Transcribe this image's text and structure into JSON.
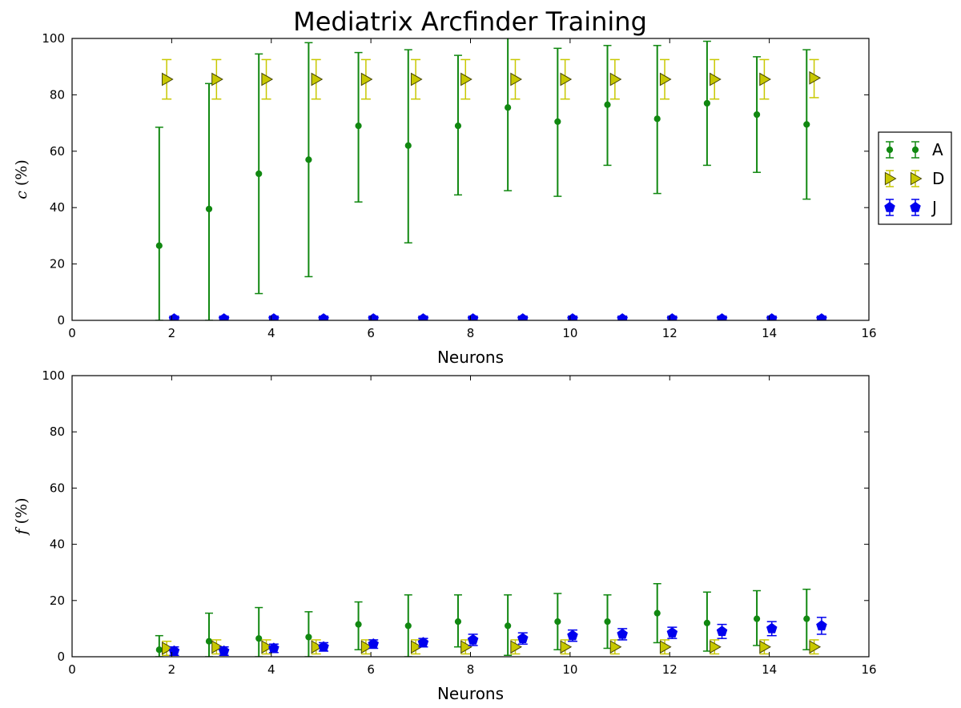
{
  "figure": {
    "title": "Mediatrix Arcfinder Training"
  },
  "colors": {
    "A": "#118811",
    "D": "#c8c800",
    "J": "#0000ee",
    "D_edge": "#444400"
  },
  "legend": {
    "placement": "outside-right-of-top-panel",
    "entries": [
      "A",
      "D",
      "J"
    ]
  },
  "chart_data": [
    {
      "type": "scatter",
      "panel": "top",
      "title": "Mediatrix Arcfinder Training",
      "xlabel": "Neurons",
      "ylabel_symbol": "c",
      "ylabel_unit": " (%)",
      "xlim": [
        0,
        16
      ],
      "ylim": [
        0,
        100
      ],
      "xticks": [
        0,
        2,
        4,
        6,
        8,
        10,
        12,
        14,
        16
      ],
      "yticks": [
        0,
        20,
        40,
        60,
        80,
        100
      ],
      "grid": false,
      "series": [
        {
          "name": "A",
          "marker": "dot",
          "x": [
            1.75,
            2.75,
            3.75,
            4.75,
            5.75,
            6.75,
            7.75,
            8.75,
            9.75,
            10.75,
            11.75,
            12.75,
            13.75,
            14.75
          ],
          "y": [
            26.5,
            39.5,
            52,
            57,
            69,
            62,
            69,
            75.5,
            70.5,
            76.5,
            71.5,
            77,
            73,
            69.5
          ],
          "err_low": [
            26.5,
            39.5,
            42.5,
            41.5,
            27,
            34.5,
            24.5,
            29.5,
            26.5,
            21.5,
            26.5,
            22,
            20.5,
            26.5
          ],
          "err_high": [
            42,
            44.5,
            42.5,
            41.5,
            26,
            34,
            25,
            26,
            26,
            21,
            26,
            22,
            20.5,
            26.5
          ]
        },
        {
          "name": "D",
          "marker": "triangle-right",
          "x": [
            1.9,
            2.9,
            3.9,
            4.9,
            5.9,
            6.9,
            7.9,
            8.9,
            9.9,
            10.9,
            11.9,
            12.9,
            13.9,
            14.9
          ],
          "y": [
            85.5,
            85.5,
            85.5,
            85.5,
            85.5,
            85.5,
            85.5,
            85.5,
            85.5,
            85.5,
            85.5,
            85.5,
            85.5,
            86
          ],
          "err_low": [
            7,
            7,
            7,
            7,
            7,
            7,
            7,
            7,
            7,
            7,
            7,
            7,
            7,
            7
          ],
          "err_high": [
            7,
            7,
            7,
            7,
            7,
            7,
            7,
            7,
            7,
            7,
            7,
            7,
            7,
            6.5
          ]
        },
        {
          "name": "J",
          "marker": "pentagon",
          "x": [
            2.05,
            3.05,
            4.05,
            5.05,
            6.05,
            7.05,
            8.05,
            9.05,
            10.05,
            11.05,
            12.05,
            13.05,
            14.05,
            15.05
          ],
          "y": [
            0.5,
            0.5,
            0.5,
            0.5,
            0.5,
            0.5,
            0.5,
            0.5,
            0.5,
            0.5,
            0.5,
            0.5,
            0.5,
            0.5
          ],
          "err_low": [
            0.5,
            0.5,
            0.5,
            0.5,
            0.5,
            0.5,
            0.5,
            0.5,
            0.5,
            0.5,
            0.5,
            0.5,
            0.5,
            0.5
          ],
          "err_high": [
            1,
            1,
            1,
            1,
            1,
            1,
            1,
            1,
            1,
            1,
            1,
            1,
            1,
            1
          ]
        }
      ]
    },
    {
      "type": "scatter",
      "panel": "bottom",
      "xlabel": "Neurons",
      "ylabel_symbol": "f",
      "ylabel_unit": " (%)",
      "xlim": [
        0,
        16
      ],
      "ylim": [
        0,
        100
      ],
      "xticks": [
        0,
        2,
        4,
        6,
        8,
        10,
        12,
        14,
        16
      ],
      "yticks": [
        0,
        20,
        40,
        60,
        80,
        100
      ],
      "grid": false,
      "series": [
        {
          "name": "A",
          "marker": "dot",
          "x": [
            1.75,
            2.75,
            3.75,
            4.75,
            5.75,
            6.75,
            7.75,
            8.75,
            9.75,
            10.75,
            11.75,
            12.75,
            13.75,
            14.75
          ],
          "y": [
            2.5,
            5.5,
            6.5,
            7,
            11.5,
            11,
            12.5,
            11,
            12.5,
            12.5,
            15.5,
            12,
            13.5,
            13.5
          ],
          "err_low": [
            2.5,
            5.5,
            6.5,
            7,
            9,
            11,
            9,
            10.5,
            10,
            9.5,
            10.5,
            10,
            9.5,
            11
          ],
          "err_high": [
            5,
            10,
            11,
            9,
            8,
            11,
            9.5,
            11,
            10,
            9.5,
            10.5,
            11,
            10,
            10.5
          ]
        },
        {
          "name": "D",
          "marker": "triangle-right",
          "x": [
            1.9,
            2.9,
            3.9,
            4.9,
            5.9,
            6.9,
            7.9,
            8.9,
            9.9,
            10.9,
            11.9,
            12.9,
            13.9,
            14.9
          ],
          "y": [
            3,
            3.5,
            3.5,
            3.5,
            3.5,
            3.5,
            3.5,
            3.5,
            3.5,
            3.5,
            3.5,
            3.5,
            3.5,
            3.5
          ],
          "err_low": [
            2.5,
            2.5,
            2.5,
            2.5,
            2.5,
            2.5,
            2.5,
            2.5,
            2.5,
            2.5,
            2.5,
            2.5,
            2.5,
            2.5
          ],
          "err_high": [
            2.5,
            2.5,
            2.5,
            2.5,
            2.5,
            2.5,
            2.5,
            2.5,
            2.5,
            2.5,
            2.5,
            2.5,
            2.5,
            2.5
          ]
        },
        {
          "name": "J",
          "marker": "pentagon",
          "x": [
            2.05,
            3.05,
            4.05,
            5.05,
            6.05,
            7.05,
            8.05,
            9.05,
            10.05,
            11.05,
            12.05,
            13.05,
            14.05,
            15.05
          ],
          "y": [
            2,
            2,
            3,
            3.5,
            4.5,
            5,
            6,
            6.5,
            7.5,
            8,
            8.5,
            9,
            10,
            11
          ],
          "err_low": [
            1.5,
            1.5,
            1.5,
            1.5,
            1.5,
            1.5,
            2,
            2,
            2,
            2,
            2,
            2.5,
            2.5,
            3
          ],
          "err_high": [
            1.5,
            1.5,
            1.5,
            1.5,
            1.5,
            1.5,
            2,
            2,
            2,
            2,
            2,
            2.5,
            2.5,
            3
          ]
        }
      ]
    }
  ]
}
